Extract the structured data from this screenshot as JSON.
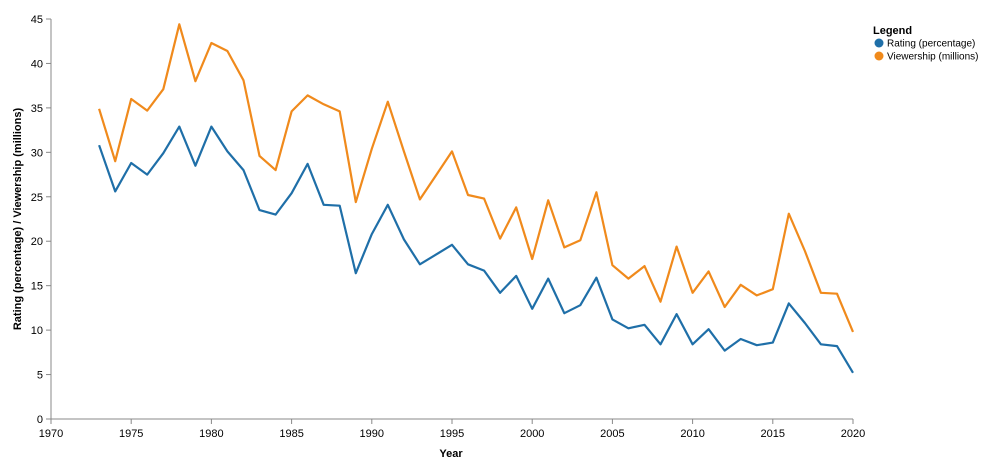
{
  "chart_data": {
    "type": "line",
    "xlabel": "Year",
    "ylabel": "Rating (percentage) / Viewership (millions)",
    "xlim": [
      1970,
      2020
    ],
    "ylim": [
      0,
      45
    ],
    "x_ticks": [
      1970,
      1975,
      1980,
      1985,
      1990,
      1995,
      2000,
      2005,
      2010,
      2015,
      2020
    ],
    "y_ticks": [
      0,
      5,
      10,
      15,
      20,
      25,
      30,
      35,
      40,
      45
    ],
    "grid": false,
    "legend": {
      "title": "Legend",
      "position": "top-right"
    },
    "x": [
      1973,
      1974,
      1975,
      1976,
      1977,
      1978,
      1979,
      1980,
      1981,
      1982,
      1983,
      1984,
      1985,
      1986,
      1987,
      1988,
      1989,
      1990,
      1991,
      1992,
      1993,
      1994,
      1995,
      1996,
      1997,
      1998,
      1999,
      2000,
      2001,
      2002,
      2003,
      2004,
      2005,
      2006,
      2007,
      2008,
      2009,
      2010,
      2011,
      2012,
      2013,
      2014,
      2015,
      2016,
      2017,
      2018,
      2019,
      2020
    ],
    "series": [
      {
        "name": "Rating (percentage)",
        "color": "#1f6fa8",
        "values": [
          30.8,
          25.6,
          28.8,
          27.5,
          29.9,
          32.9,
          28.5,
          32.9,
          30.1,
          28.0,
          23.5,
          23.0,
          25.4,
          28.7,
          24.1,
          24.0,
          16.4,
          20.8,
          24.1,
          20.2,
          17.4,
          18.5,
          19.6,
          17.4,
          16.7,
          14.2,
          16.1,
          12.4,
          15.8,
          11.9,
          12.8,
          15.9,
          11.2,
          10.2,
          10.6,
          8.4,
          11.8,
          8.4,
          10.1,
          7.7,
          9.0,
          8.3,
          8.6,
          13.0,
          10.8,
          8.4,
          8.2,
          5.2
        ]
      },
      {
        "name": "Viewership (millions)",
        "color": "#f08a1c",
        "values": [
          34.9,
          29.0,
          36.0,
          34.7,
          37.1,
          44.4,
          38.0,
          42.3,
          41.4,
          38.1,
          29.6,
          28.0,
          34.6,
          36.4,
          35.4,
          34.6,
          24.4,
          30.4,
          35.7,
          30.1,
          24.7,
          27.4,
          30.1,
          25.2,
          24.8,
          20.3,
          23.8,
          18.0,
          24.6,
          19.3,
          20.1,
          25.5,
          17.3,
          15.8,
          17.2,
          13.2,
          19.4,
          14.2,
          16.6,
          12.6,
          15.1,
          13.9,
          14.6,
          23.1,
          18.9,
          14.2,
          14.1,
          9.8
        ]
      }
    ]
  }
}
